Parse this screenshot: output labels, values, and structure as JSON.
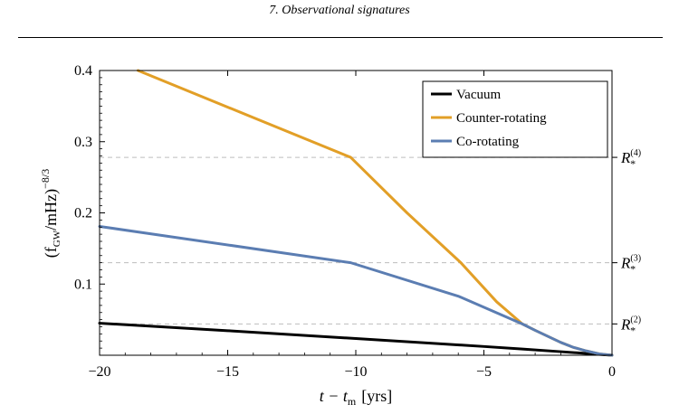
{
  "header": {
    "text": "7. Observational signatures"
  },
  "chart_data": {
    "type": "line",
    "xlabel": "t − t",
    "xlabel_sub": "m",
    "xlabel_unit": "[yrs]",
    "ylabel": "(f",
    "ylabel_sub": "GW",
    "ylabel_mid": "/mHz)",
    "ylabel_sup": "−8/3",
    "xlim": [
      -20,
      0
    ],
    "ylim": [
      0,
      0.4
    ],
    "x_ticks": [
      -20,
      -15,
      -10,
      -5,
      0
    ],
    "x_tick_labels": [
      "−20",
      "−15",
      "−10",
      "−5",
      "0"
    ],
    "y_ticks": [
      0.1,
      0.2,
      0.3,
      0.4
    ],
    "y_tick_labels": [
      "0.1",
      "0.2",
      "0.3",
      "0.4"
    ],
    "reference_lines": [
      {
        "y": 0.278,
        "label": "R",
        "sub": "*",
        "sup": "(4)"
      },
      {
        "y": 0.13,
        "label": "R",
        "sub": "*",
        "sup": "(3)"
      },
      {
        "y": 0.044,
        "label": "R",
        "sub": "*",
        "sup": "(2)"
      }
    ],
    "legend_position": "top-right",
    "series": [
      {
        "name": "Vacuum",
        "color": "#000000",
        "x": [
          -20,
          -15,
          -10,
          -5,
          -3.5,
          -2,
          -1,
          0
        ],
        "y": [
          0.045,
          0.0345,
          0.0235,
          0.0123,
          0.0088,
          0.005,
          0.0025,
          0
        ]
      },
      {
        "name": "Counter-rotating",
        "color": "#E29F27",
        "x": [
          -18.5,
          -10.2,
          -8,
          -5.9,
          -4.5,
          -3.5,
          -3,
          -2,
          -1.5,
          -1,
          -0.5,
          0
        ],
        "y": [
          0.4,
          0.278,
          0.2,
          0.13,
          0.075,
          0.044,
          0.035,
          0.018,
          0.011,
          0.006,
          0.002,
          0
        ]
      },
      {
        "name": "Co-rotating",
        "color": "#5B7DB2",
        "x": [
          -20,
          -10.2,
          -6,
          -3.5,
          -3,
          -2,
          -1.5,
          -1,
          -0.5,
          0
        ],
        "y": [
          0.181,
          0.13,
          0.083,
          0.044,
          0.035,
          0.018,
          0.011,
          0.006,
          0.002,
          0
        ]
      }
    ]
  }
}
